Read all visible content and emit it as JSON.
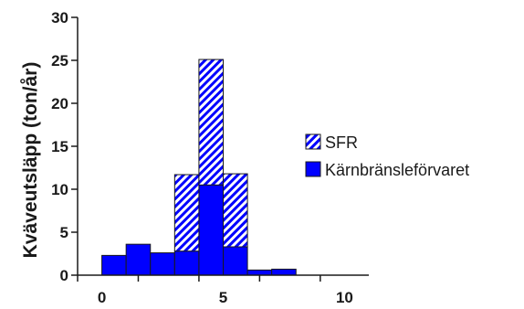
{
  "chart_data": {
    "type": "bar",
    "stacked": true,
    "ylabel": "Kväveutsläpp (ton/år)",
    "xlabel": "",
    "title": "",
    "ylim": [
      0,
      30
    ],
    "xlim": [
      -1.0,
      11.0
    ],
    "yticks": [
      "0",
      "5",
      "10",
      "15",
      "20",
      "25",
      "30"
    ],
    "xticks": [
      "0",
      "5",
      "10"
    ],
    "bin_edges": [
      0,
      1,
      2,
      3,
      4,
      5,
      6,
      7,
      8
    ],
    "series": [
      {
        "name": "Kärnbränsleförvaret",
        "fill": "solid",
        "color": "#0000ff",
        "values": [
          2.3,
          3.6,
          2.6,
          2.8,
          10.5,
          3.3,
          0.6,
          0.7
        ]
      },
      {
        "name": "SFR",
        "fill": "hatched",
        "color": "#0000ff",
        "values": [
          0,
          0,
          0,
          8.9,
          14.6,
          8.5,
          0,
          0
        ]
      }
    ],
    "legend_position": "right",
    "grid": false
  }
}
